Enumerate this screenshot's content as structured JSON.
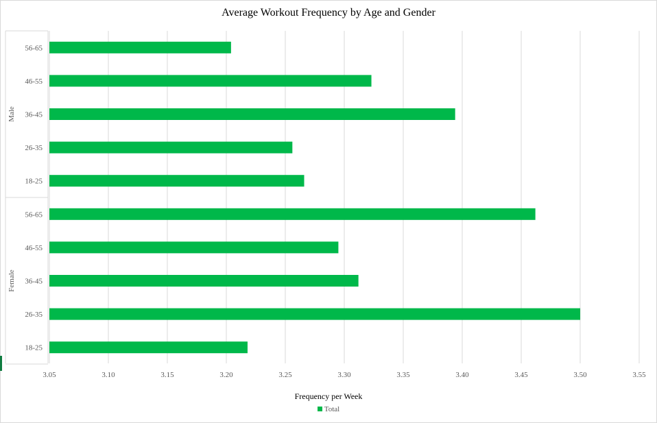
{
  "chart_data": {
    "type": "bar",
    "orientation": "horizontal",
    "title": "Average Workout Frequency by Age and Gender",
    "xlabel": "Frequency per Week",
    "ylabel": "",
    "xlim": [
      3.05,
      3.55
    ],
    "x_ticks": [
      "3.05",
      "3.10",
      "3.15",
      "3.20",
      "3.25",
      "3.30",
      "3.35",
      "3.40",
      "3.45",
      "3.50",
      "3.55"
    ],
    "groups": [
      {
        "name": "Male",
        "categories": [
          "56-65",
          "46-55",
          "36-45",
          "26-35",
          "18-25"
        ],
        "values": [
          3.204,
          3.323,
          3.394,
          3.256,
          3.266
        ]
      },
      {
        "name": "Female",
        "categories": [
          "56-65",
          "46-55",
          "36-45",
          "26-35",
          "18-25"
        ],
        "values": [
          3.462,
          3.295,
          3.312,
          3.5,
          3.218
        ]
      }
    ],
    "series": [
      {
        "name": "Total",
        "color": "#00b84a"
      }
    ],
    "grid": "vertical",
    "legend": "bottom"
  }
}
